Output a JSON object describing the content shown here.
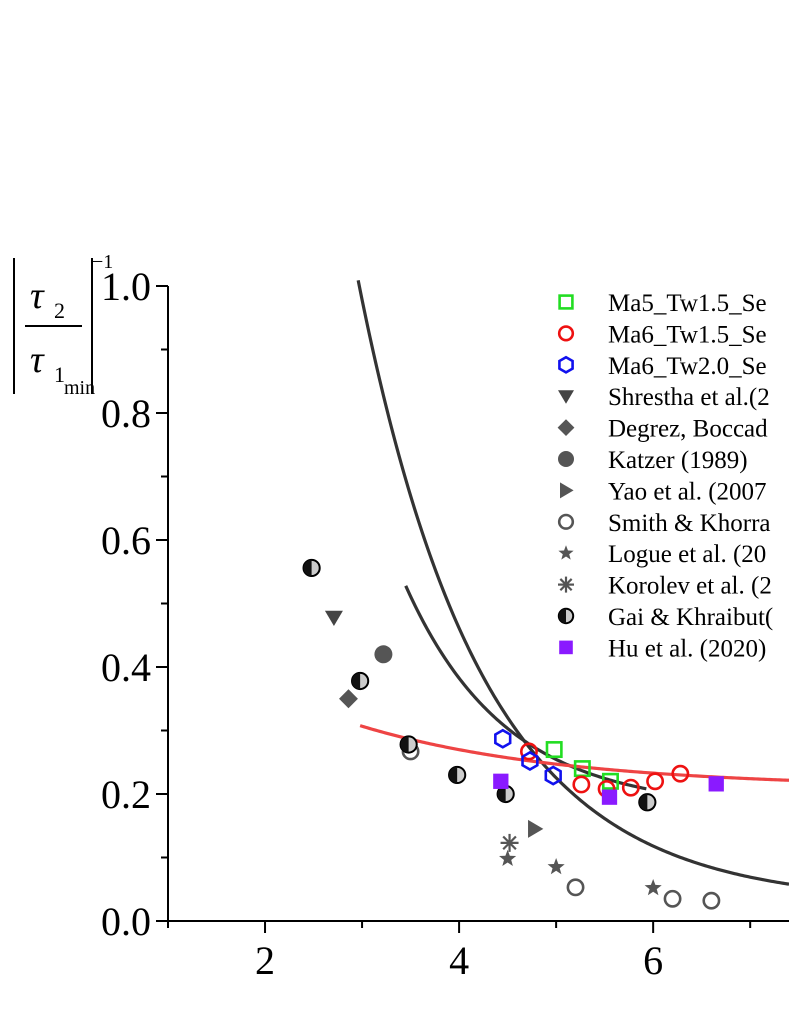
{
  "chart_data": {
    "type": "scatter",
    "title": "",
    "xlabel": "",
    "ylabel": {
      "numerator": "τ",
      "numerator_sub": "2",
      "denominator": "τ",
      "denominator_sub": "1",
      "subscript": "min",
      "exponent": "−1"
    },
    "xlim": [
      1.0,
      7.4
    ],
    "ylim": [
      0.0,
      1.0
    ],
    "x_ticks": [
      2,
      4,
      6
    ],
    "x_tick_labels": [
      "2",
      "4",
      "6"
    ],
    "y_ticks": [
      0.0,
      0.2,
      0.4,
      0.6,
      0.8,
      1.0
    ],
    "y_tick_labels": [
      "0.0",
      "0.2",
      "0.4",
      "0.6",
      "0.8",
      "1.0"
    ],
    "legend_position": "top-right",
    "series": [
      {
        "name": "Ma5_Tw1.5_Se",
        "marker": "square-open",
        "color": "#22dd22",
        "x": [
          4.98,
          5.27,
          5.56
        ],
        "y": [
          0.27,
          0.24,
          0.22
        ]
      },
      {
        "name": "Ma6_Tw1.5_Se",
        "marker": "circle-open",
        "color": "#ee1111",
        "x": [
          4.72,
          5.26,
          5.52,
          5.77,
          6.02,
          6.28
        ],
        "y": [
          0.267,
          0.215,
          0.208,
          0.21,
          0.22,
          0.232
        ]
      },
      {
        "name": "Ma6_Tw2.0_Se",
        "marker": "hexagon-open",
        "color": "#1111ee",
        "x": [
          4.45,
          4.73,
          4.97
        ],
        "y": [
          0.287,
          0.252,
          0.229
        ]
      },
      {
        "name": "Shrestha et al.(2",
        "marker": "triangle-down",
        "color": "#444444",
        "x": [
          2.71
        ],
        "y": [
          0.478
        ]
      },
      {
        "name": "Degrez, Boccad",
        "marker": "diamond",
        "color": "#555555",
        "x": [
          2.86
        ],
        "y": [
          0.35
        ]
      },
      {
        "name": "Katzer (1989)",
        "marker": "circle",
        "color": "#555555",
        "x": [
          3.22
        ],
        "y": [
          0.42
        ]
      },
      {
        "name": "Yao et al. (2007",
        "marker": "triangle-right",
        "color": "#555555",
        "x": [
          4.78
        ],
        "y": [
          0.145
        ]
      },
      {
        "name": "Smith & Khorra",
        "marker": "circle-gray",
        "color": "#555555",
        "x": [
          3.5,
          5.2,
          6.2,
          6.6
        ],
        "y": [
          0.267,
          0.053,
          0.035,
          0.032
        ]
      },
      {
        "name": "Logue et al. (20",
        "marker": "star",
        "color": "#555555",
        "x": [
          4.5,
          5.0,
          6.0
        ],
        "y": [
          0.098,
          0.085,
          0.052
        ]
      },
      {
        "name": "Korolev et al. (2",
        "marker": "asterisk",
        "color": "#555555",
        "x": [
          4.52
        ],
        "y": [
          0.123
        ]
      },
      {
        "name": "Gai & Khraibut(",
        "marker": "circle-half",
        "color": "#000000",
        "x": [
          2.48,
          2.98,
          3.48,
          3.98,
          4.48,
          5.94
        ],
        "y": [
          0.556,
          0.378,
          0.278,
          0.23,
          0.2,
          0.187
        ]
      },
      {
        "name": "Hu et al. (2020)",
        "marker": "square",
        "color": "#8a1aff",
        "x": [
          4.43,
          5.55,
          6.65
        ],
        "y": [
          0.22,
          0.195,
          0.216
        ]
      }
    ],
    "fit_curves": [
      {
        "color": "#333333",
        "a": 0.02807,
        "b": 10.04,
        "k": 0.7858,
        "x_range": [
          1.6,
          7.4
        ]
      },
      {
        "color": "#333333",
        "a": 0.1766,
        "b": 10.04,
        "k": 0.9718,
        "x_range": [
          3.45,
          5.94
        ]
      },
      {
        "color": "#ee4444",
        "a": 0.2099,
        "b": 0.4082,
        "k": 0.4796,
        "x_range": [
          2.98,
          7.4
        ]
      }
    ]
  }
}
